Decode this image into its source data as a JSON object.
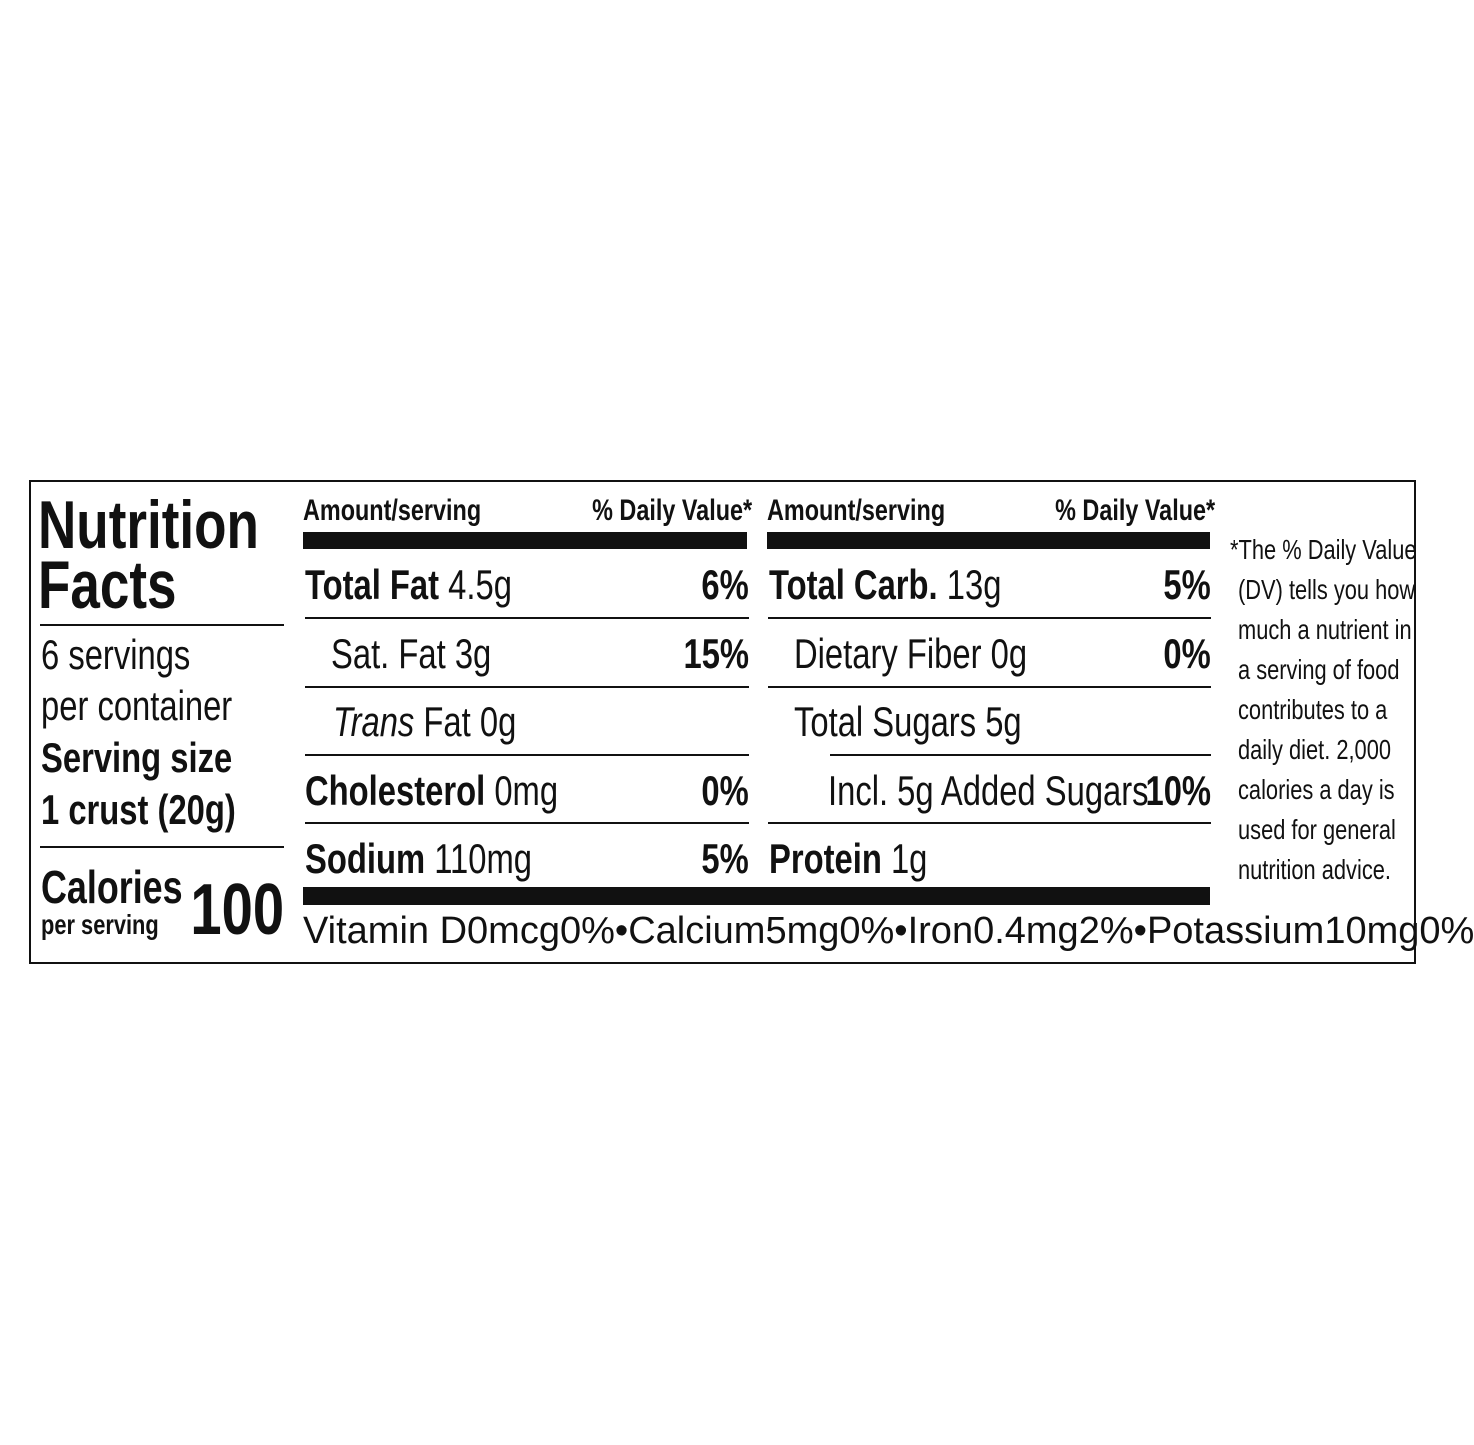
{
  "title_line1": "Nutrition",
  "title_line2": "Facts",
  "servings_line1": "6 servings",
  "servings_line2": "per container",
  "serving_size_label": "Serving size",
  "serving_size_value": "1 crust (20g)",
  "calories_label": "Calories",
  "calories_sub": "per serving",
  "calories_value": "100",
  "header": {
    "amount": "Amount/serving",
    "dv": "% Daily Value*"
  },
  "col1": [
    {
      "name": "Total Fat",
      "amount": "4.5g",
      "dv": "6%"
    },
    {
      "name": "Sat. Fat",
      "amount": "3g",
      "dv": "15%"
    },
    {
      "name_italic": "Trans",
      "name": "Fat",
      "amount": "0g",
      "dv": ""
    },
    {
      "name": "Cholesterol",
      "amount": "0mg",
      "dv": "0%"
    },
    {
      "name": "Sodium",
      "amount": "110mg",
      "dv": "5%"
    }
  ],
  "col2": [
    {
      "name": "Total Carb.",
      "amount": "13g",
      "dv": "5%"
    },
    {
      "name": "Dietary Fiber",
      "amount": "0g",
      "dv": "0%"
    },
    {
      "name": "Total Sugars",
      "amount": "5g",
      "dv": ""
    },
    {
      "name": "Incl. 5g Added Sugars",
      "amount": "",
      "dv": "10%"
    },
    {
      "name": "Protein",
      "amount": "1g",
      "dv": ""
    }
  ],
  "vitamins": [
    {
      "name": "Vitamin D",
      "amount": "0mcg",
      "dv": "0%"
    },
    {
      "name": "Calcium",
      "amount": "5mg",
      "dv": "0%"
    },
    {
      "name": "Iron",
      "amount": "0.4mg",
      "dv": "2%"
    },
    {
      "name": "Potassium",
      "amount": "10mg",
      "dv": "0%"
    }
  ],
  "bullet": "•",
  "footnote": [
    "*The % Daily Value",
    "(DV) tells you how",
    "much a nutrient in",
    "a serving of food",
    "contributes to a",
    "daily diet. 2,000",
    "calories a day is",
    "used for general",
    "nutrition advice."
  ]
}
